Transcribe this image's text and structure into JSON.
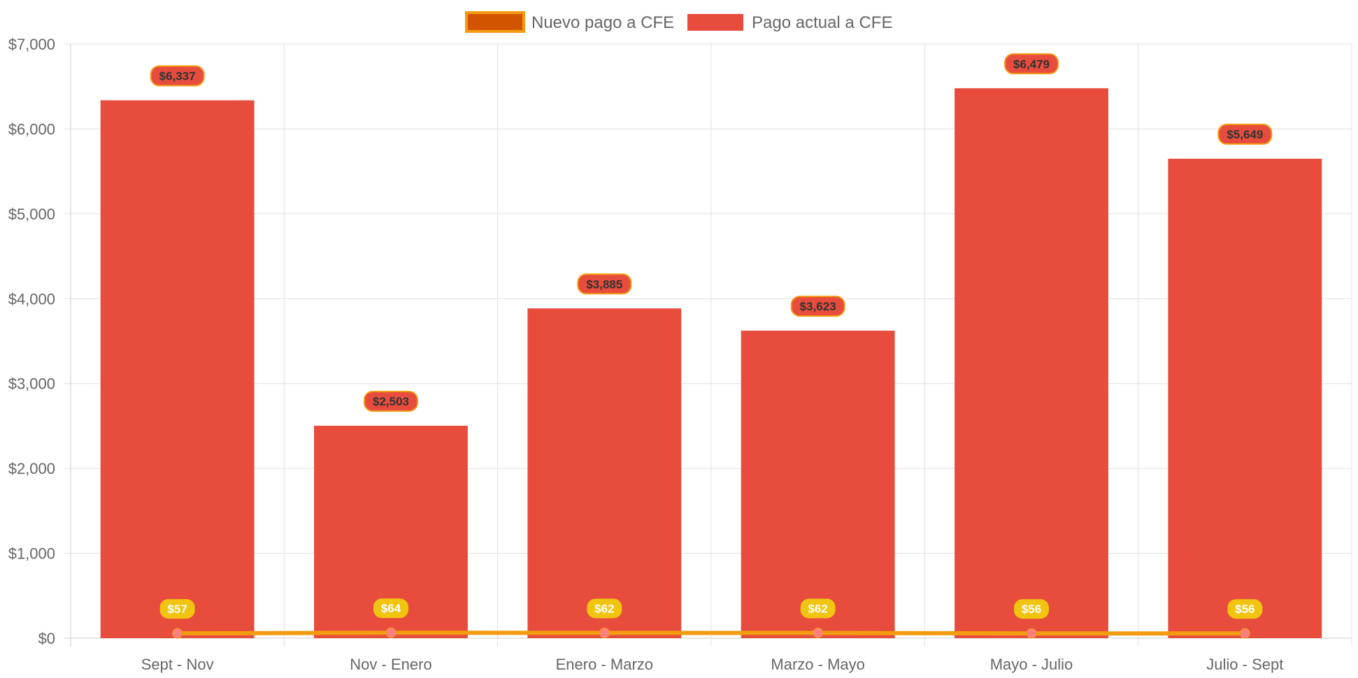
{
  "chart_data": {
    "type": "bar",
    "categories": [
      "Sept - Nov",
      "Nov - Enero",
      "Enero - Marzo",
      "Marzo - Mayo",
      "Mayo - Julio",
      "Julio - Sept"
    ],
    "ylim": [
      0,
      7000
    ],
    "y_ticks": [
      {
        "value": 0,
        "label": "$0"
      },
      {
        "value": 1000,
        "label": "$1,000"
      },
      {
        "value": 2000,
        "label": "$2,000"
      },
      {
        "value": 3000,
        "label": "$3,000"
      },
      {
        "value": 4000,
        "label": "$4,000"
      },
      {
        "value": 5000,
        "label": "$5,000"
      },
      {
        "value": 6000,
        "label": "$6,000"
      },
      {
        "value": 7000,
        "label": "$7,000"
      }
    ],
    "grid": true,
    "legend_position": "top-center",
    "series": [
      {
        "name": "Nuevo pago a CFE",
        "type": "line",
        "color": "#f39c12",
        "legend_fill": "#d35400",
        "point_color": "#ff7f7f",
        "values": [
          57,
          64,
          62,
          62,
          56,
          56
        ],
        "data_labels": [
          "$57",
          "$64",
          "$62",
          "$62",
          "$56",
          "$56"
        ],
        "label_bg": "#f1c40f",
        "label_text_color": "#ffffff"
      },
      {
        "name": "Pago actual a CFE",
        "type": "bar",
        "color": "#e74c3c",
        "values": [
          6337,
          2503,
          3885,
          3623,
          6479,
          5649
        ],
        "data_labels": [
          "$6,337",
          "$2,503",
          "$3,885",
          "$3,623",
          "$6,479",
          "$5,649"
        ],
        "label_bg": "#e74c3c",
        "label_border": "#f39c12",
        "label_text_color": "#333333"
      }
    ]
  }
}
